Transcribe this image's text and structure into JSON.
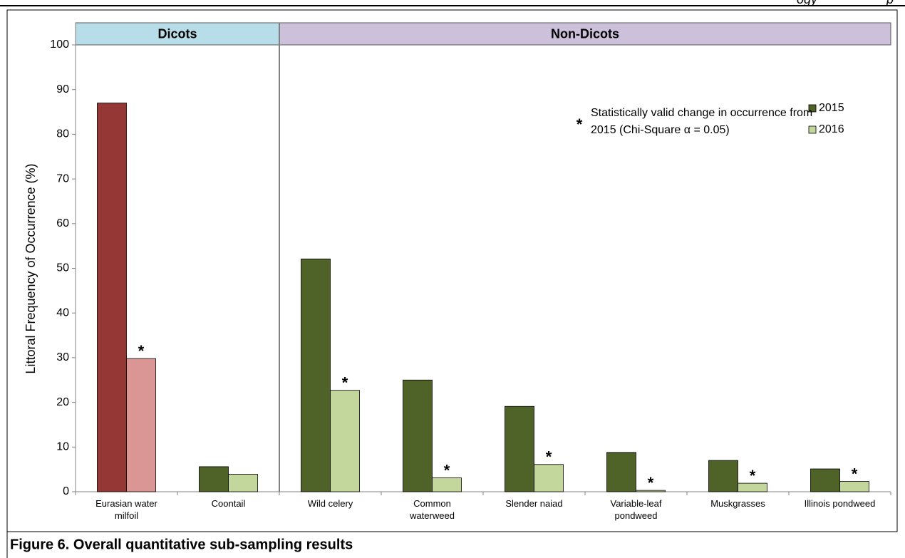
{
  "header_fragments": [
    "ogy",
    "p"
  ],
  "caption": "Figure 6.  Overall quantitative sub-sampling results",
  "chart_data": {
    "type": "bar",
    "ylabel": "Littoral Frequency of Occurrence (%)",
    "categories": [
      "Eurasian water\nmilfoil",
      "Coontail",
      "Wild celery",
      "Common\nwaterweed",
      "Slender naiad",
      "Variable-leaf\npondweed",
      "Muskgrasses",
      "Illinois pondweed"
    ],
    "series": [
      {
        "name": "2015",
        "color": "#4f6228",
        "colors": [
          "#953735",
          "#4f6228",
          "#4f6228",
          "#4f6228",
          "#4f6228",
          "#4f6228",
          "#4f6228",
          "#4f6228"
        ],
        "values": [
          87,
          5.6,
          52.1,
          25,
          19.1,
          8.8,
          7,
          5.1
        ]
      },
      {
        "name": "2016",
        "color": "#c3d69b",
        "colors": [
          "#d99694",
          "#c3d69b",
          "#c3d69b",
          "#c3d69b",
          "#c3d69b",
          "#c3d69b",
          "#c3d69b",
          "#c3d69b"
        ],
        "values": [
          29.8,
          3.9,
          22.7,
          3.1,
          6.1,
          0.3,
          1.9,
          2.3
        ]
      }
    ],
    "significance_marker": "*",
    "significant": [
      true,
      false,
      true,
      true,
      true,
      true,
      true,
      true
    ],
    "significance_note": [
      "Statistically valid change in occurrence from",
      "2015 (Chi-Square α = 0.05)"
    ],
    "groups": [
      {
        "label": "Dicots",
        "count": 2,
        "color": "#b7dde8"
      },
      {
        "label": "Non-Dicots",
        "count": 6,
        "color": "#ccc0da"
      }
    ],
    "ylim": [
      0,
      100
    ],
    "yticks": [
      0,
      10,
      20,
      30,
      40,
      50,
      60,
      70,
      80,
      90,
      100
    ],
    "legend": "upper right"
  }
}
